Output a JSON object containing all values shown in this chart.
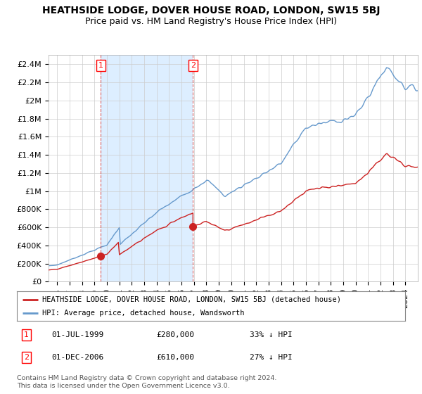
{
  "title": "HEATHSIDE LODGE, DOVER HOUSE ROAD, LONDON, SW15 5BJ",
  "subtitle": "Price paid vs. HM Land Registry's House Price Index (HPI)",
  "ylabel_ticks": [
    "£0",
    "£200K",
    "£400K",
    "£600K",
    "£800K",
    "£1M",
    "£1.2M",
    "£1.4M",
    "£1.6M",
    "£1.8M",
    "£2M",
    "£2.2M",
    "£2.4M"
  ],
  "ytick_values": [
    0,
    200000,
    400000,
    600000,
    800000,
    1000000,
    1200000,
    1400000,
    1600000,
    1800000,
    2000000,
    2200000,
    2400000
  ],
  "ylim": [
    0,
    2500000
  ],
  "xlim_start": 1995.3,
  "xlim_end": 2025.0,
  "hpi_color": "#6699cc",
  "price_color": "#cc2222",
  "shade_color": "#ddeeff",
  "marker1_year": 1999.5,
  "marker1_price": 280000,
  "marker2_year": 2006.917,
  "marker2_price": 610000,
  "legend_label1": "HEATHSIDE LODGE, DOVER HOUSE ROAD, LONDON, SW15 5BJ (detached house)",
  "legend_label2": "HPI: Average price, detached house, Wandsworth",
  "annotation1_date": "01-JUL-1999",
  "annotation1_price": "£280,000",
  "annotation1_pct": "33% ↓ HPI",
  "annotation2_date": "01-DEC-2006",
  "annotation2_price": "£610,000",
  "annotation2_pct": "27% ↓ HPI",
  "footer": "Contains HM Land Registry data © Crown copyright and database right 2024.\nThis data is licensed under the Open Government Licence v3.0.",
  "title_fontsize": 10,
  "subtitle_fontsize": 9,
  "tick_fontsize": 8,
  "background_color": "#ffffff",
  "grid_color": "#cccccc"
}
